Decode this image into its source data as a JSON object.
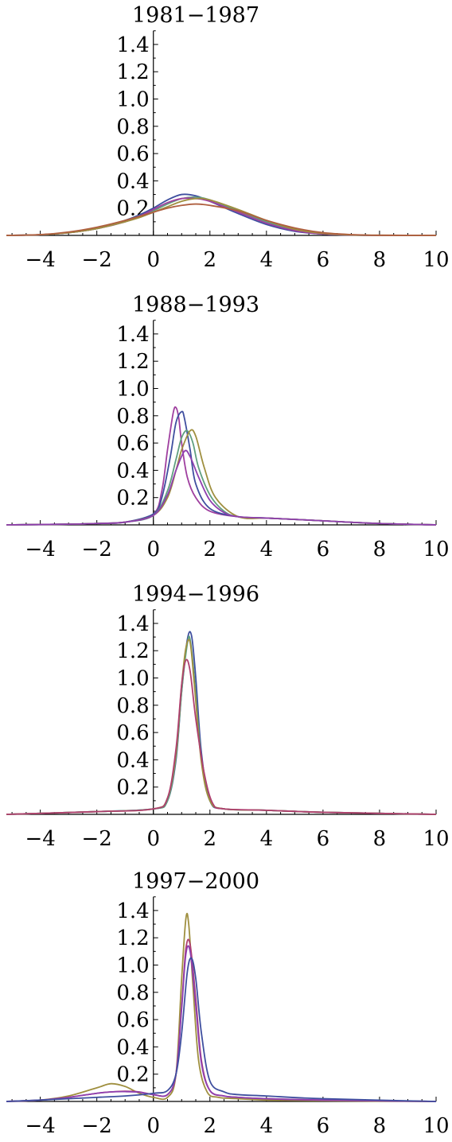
{
  "chart_data": [
    {
      "type": "line",
      "title": "1981−1987",
      "xlim": [
        -5.2,
        10
      ],
      "ylim": [
        0,
        1.5
      ],
      "xticks": [
        -4,
        -2,
        0,
        2,
        4,
        6,
        8,
        10
      ],
      "xtick_labels": [
        "−4",
        "−2",
        "0",
        "2",
        "4",
        "6",
        "8",
        "10"
      ],
      "yticks": [
        0.2,
        0.4,
        0.6,
        0.8,
        1.0,
        1.2,
        1.4
      ],
      "ytick_labels": [
        "0.2",
        "0.4",
        "0.6",
        "0.8",
        "1.0",
        "1.2",
        "1.4"
      ],
      "series": [
        {
          "color": "#3f4f9f",
          "x": [
            -5.2,
            -4,
            -3,
            -2,
            -1,
            -0.5,
            0,
            0.5,
            1,
            1.5,
            2,
            3,
            4,
            5,
            6,
            7,
            8,
            10
          ],
          "y": [
            0.0,
            0.005,
            0.02,
            0.05,
            0.11,
            0.15,
            0.2,
            0.26,
            0.3,
            0.29,
            0.25,
            0.16,
            0.08,
            0.03,
            0.01,
            0.003,
            0.0,
            0.0
          ]
        },
        {
          "color": "#5f9f7f",
          "x": [
            -5.2,
            -4,
            -3,
            -2,
            -1,
            -0.5,
            0,
            0.5,
            1,
            1.5,
            2,
            3,
            4,
            5,
            6,
            7,
            8,
            10
          ],
          "y": [
            0.0,
            0.005,
            0.02,
            0.05,
            0.1,
            0.14,
            0.18,
            0.23,
            0.27,
            0.28,
            0.26,
            0.18,
            0.1,
            0.04,
            0.01,
            0.003,
            0.0,
            0.0
          ]
        },
        {
          "color": "#9f3f9f",
          "x": [
            -5.2,
            -4,
            -3,
            -2,
            -1,
            -0.5,
            0,
            0.5,
            1,
            1.5,
            2,
            3,
            4,
            5,
            6,
            7,
            8,
            10
          ],
          "y": [
            0.0,
            0.005,
            0.02,
            0.05,
            0.1,
            0.14,
            0.19,
            0.24,
            0.27,
            0.27,
            0.25,
            0.17,
            0.09,
            0.035,
            0.01,
            0.003,
            0.0,
            0.0
          ]
        },
        {
          "color": "#9f8f3f",
          "x": [
            -5.2,
            -4,
            -3,
            -2,
            -1,
            -0.5,
            0,
            0.5,
            1,
            1.5,
            2,
            3,
            4,
            5,
            6,
            7,
            8,
            10
          ],
          "y": [
            0.0,
            0.005,
            0.02,
            0.05,
            0.1,
            0.13,
            0.17,
            0.21,
            0.25,
            0.27,
            0.26,
            0.19,
            0.11,
            0.045,
            0.015,
            0.004,
            0.001,
            0.0
          ]
        },
        {
          "color": "#af5f3f",
          "x": [
            -5.2,
            -4,
            -3,
            -2,
            -1,
            0,
            0.5,
            1,
            1.5,
            2,
            3,
            4,
            5,
            6,
            7,
            8,
            10
          ],
          "y": [
            0.0,
            0.006,
            0.025,
            0.06,
            0.11,
            0.17,
            0.2,
            0.22,
            0.23,
            0.22,
            0.18,
            0.11,
            0.055,
            0.02,
            0.006,
            0.001,
            0.0
          ]
        }
      ]
    },
    {
      "type": "line",
      "title": "1988−1993",
      "xlim": [
        -5.2,
        10
      ],
      "ylim": [
        0,
        1.5
      ],
      "xticks": [
        -4,
        -2,
        0,
        2,
        4,
        6,
        8,
        10
      ],
      "xtick_labels": [
        "−4",
        "−2",
        "0",
        "2",
        "4",
        "6",
        "8",
        "10"
      ],
      "yticks": [
        0.2,
        0.4,
        0.6,
        0.8,
        1.0,
        1.2,
        1.4
      ],
      "ytick_labels": [
        "0.2",
        "0.4",
        "0.6",
        "0.8",
        "1.0",
        "1.2",
        "1.4"
      ],
      "series": [
        {
          "color": "#9f3f9f",
          "x": [
            -5.2,
            -3,
            -2,
            -1,
            0,
            0.3,
            0.5,
            0.7,
            0.8,
            0.9,
            1.0,
            1.2,
            1.5,
            2,
            3,
            4,
            5,
            6,
            8,
            10
          ],
          "y": [
            0.0,
            0.005,
            0.01,
            0.02,
            0.08,
            0.25,
            0.55,
            0.82,
            0.86,
            0.78,
            0.6,
            0.35,
            0.2,
            0.1,
            0.06,
            0.05,
            0.04,
            0.03,
            0.01,
            0.0
          ]
        },
        {
          "color": "#3f4f9f",
          "x": [
            -5.2,
            -3,
            -2,
            -1,
            0,
            0.3,
            0.6,
            0.8,
            1.0,
            1.1,
            1.3,
            1.5,
            2,
            3,
            4,
            5,
            6,
            8,
            10
          ],
          "y": [
            0.0,
            0.005,
            0.01,
            0.02,
            0.08,
            0.2,
            0.5,
            0.75,
            0.83,
            0.78,
            0.55,
            0.3,
            0.12,
            0.06,
            0.05,
            0.04,
            0.03,
            0.01,
            0.0
          ]
        },
        {
          "color": "#5f9f7f",
          "x": [
            -5.2,
            -3,
            -2,
            -1,
            0,
            0.5,
            0.8,
            1.0,
            1.2,
            1.4,
            1.6,
            2,
            2.5,
            3,
            4,
            5,
            6,
            8,
            10
          ],
          "y": [
            0.0,
            0.005,
            0.01,
            0.02,
            0.07,
            0.25,
            0.48,
            0.64,
            0.69,
            0.6,
            0.42,
            0.22,
            0.1,
            0.06,
            0.05,
            0.04,
            0.03,
            0.01,
            0.0
          ]
        },
        {
          "color": "#9f8f3f",
          "x": [
            -5.2,
            -3,
            -2,
            -1,
            0,
            0.5,
            0.8,
            1.0,
            1.3,
            1.5,
            1.8,
            2.2,
            3,
            4,
            5,
            6,
            8,
            10
          ],
          "y": [
            0.0,
            0.005,
            0.01,
            0.02,
            0.07,
            0.2,
            0.4,
            0.55,
            0.69,
            0.65,
            0.42,
            0.2,
            0.06,
            0.05,
            0.04,
            0.03,
            0.01,
            0.0
          ]
        },
        {
          "color": "#8f3faf",
          "x": [
            -5.2,
            -3,
            -2,
            -1,
            0,
            0.5,
            0.8,
            1.1,
            1.3,
            1.6,
            2,
            2.5,
            3,
            4,
            5,
            6,
            8,
            10
          ],
          "y": [
            0.0,
            0.005,
            0.01,
            0.02,
            0.07,
            0.22,
            0.4,
            0.54,
            0.5,
            0.35,
            0.18,
            0.09,
            0.06,
            0.05,
            0.04,
            0.03,
            0.01,
            0.0
          ]
        }
      ]
    },
    {
      "type": "line",
      "title": "1994−1996",
      "xlim": [
        -5.2,
        10
      ],
      "ylim": [
        0,
        1.5
      ],
      "xticks": [
        -4,
        -2,
        0,
        2,
        4,
        6,
        8,
        10
      ],
      "xtick_labels": [
        "−4",
        "−2",
        "0",
        "2",
        "4",
        "6",
        "8",
        "10"
      ],
      "yticks": [
        0.2,
        0.4,
        0.6,
        0.8,
        1.0,
        1.2,
        1.4
      ],
      "ytick_labels": [
        "0.2",
        "0.4",
        "0.6",
        "0.8",
        "1.0",
        "1.2",
        "1.4"
      ],
      "series": [
        {
          "color": "#3f4f9f",
          "x": [
            -5.2,
            -2,
            0,
            0.5,
            0.8,
            1.0,
            1.2,
            1.35,
            1.5,
            1.7,
            2,
            2.5,
            4,
            6,
            10
          ],
          "y": [
            0.0,
            0.02,
            0.04,
            0.1,
            0.4,
            0.9,
            1.28,
            1.31,
            1.0,
            0.45,
            0.1,
            0.04,
            0.03,
            0.015,
            0.0
          ]
        },
        {
          "color": "#5f9f7f",
          "x": [
            -5.2,
            -2,
            0,
            0.5,
            0.8,
            1.0,
            1.2,
            1.3,
            1.45,
            1.7,
            2,
            2.5,
            4,
            6,
            10
          ],
          "y": [
            0.0,
            0.02,
            0.04,
            0.1,
            0.42,
            0.9,
            1.25,
            1.28,
            1.0,
            0.4,
            0.1,
            0.04,
            0.03,
            0.015,
            0.0
          ]
        },
        {
          "color": "#9f8f3f",
          "x": [
            -5.2,
            -2,
            0,
            0.5,
            0.8,
            1.0,
            1.15,
            1.3,
            1.45,
            1.7,
            2,
            2.5,
            4,
            6,
            10
          ],
          "y": [
            0.0,
            0.02,
            0.04,
            0.12,
            0.45,
            0.95,
            1.22,
            1.26,
            0.95,
            0.38,
            0.1,
            0.04,
            0.03,
            0.015,
            0.0
          ]
        },
        {
          "color": "#af3f6f",
          "x": [
            -5.2,
            -2,
            0,
            0.5,
            0.8,
            1.0,
            1.15,
            1.3,
            1.5,
            1.8,
            2.1,
            2.5,
            4,
            6,
            10
          ],
          "y": [
            0.0,
            0.02,
            0.04,
            0.12,
            0.48,
            0.95,
            1.13,
            1.05,
            0.7,
            0.3,
            0.08,
            0.04,
            0.03,
            0.015,
            0.0
          ]
        }
      ]
    },
    {
      "type": "line",
      "title": "1997−2000",
      "xlim": [
        -5.2,
        10
      ],
      "ylim": [
        0,
        1.5
      ],
      "xticks": [
        -4,
        -2,
        0,
        2,
        4,
        6,
        8,
        10
      ],
      "xtick_labels": [
        "−4",
        "−2",
        "0",
        "2",
        "4",
        "6",
        "8",
        "10"
      ],
      "yticks": [
        0.2,
        0.4,
        0.6,
        0.8,
        1.0,
        1.2,
        1.4
      ],
      "ytick_labels": [
        "0.2",
        "0.4",
        "0.6",
        "0.8",
        "1.0",
        "1.2",
        "1.4"
      ],
      "series": [
        {
          "color": "#9f8f3f",
          "x": [
            -5.2,
            -4,
            -3,
            -2,
            -1.5,
            -1,
            -0.5,
            0,
            0.5,
            0.8,
            1.0,
            1.15,
            1.25,
            1.4,
            1.6,
            1.9,
            2.3,
            3,
            4,
            6,
            10
          ],
          "y": [
            0.0,
            0.01,
            0.04,
            0.1,
            0.13,
            0.11,
            0.06,
            0.03,
            0.03,
            0.2,
            0.9,
            1.34,
            1.3,
            0.85,
            0.3,
            0.07,
            0.03,
            0.02,
            0.01,
            0.005,
            0.0
          ]
        },
        {
          "color": "#af3f6f",
          "x": [
            -5.2,
            -4,
            -3,
            -2,
            -1.5,
            -1,
            -0.5,
            0,
            0.5,
            0.8,
            1.0,
            1.15,
            1.3,
            1.5,
            1.7,
            2,
            2.5,
            3,
            4,
            6,
            10
          ],
          "y": [
            0.0,
            0.01,
            0.03,
            0.06,
            0.07,
            0.075,
            0.07,
            0.05,
            0.05,
            0.2,
            0.7,
            1.12,
            1.15,
            0.75,
            0.3,
            0.08,
            0.04,
            0.03,
            0.02,
            0.01,
            0.0
          ]
        },
        {
          "color": "#8f3faf",
          "x": [
            -5.2,
            -4,
            -3,
            -2,
            -1.5,
            -1,
            -0.5,
            0,
            0.5,
            0.8,
            1.0,
            1.15,
            1.3,
            1.5,
            1.7,
            2,
            2.5,
            3,
            4,
            6,
            10
          ],
          "y": [
            0.0,
            0.01,
            0.03,
            0.06,
            0.07,
            0.072,
            0.068,
            0.05,
            0.05,
            0.2,
            0.68,
            1.08,
            1.1,
            0.7,
            0.28,
            0.08,
            0.04,
            0.03,
            0.02,
            0.01,
            0.0
          ]
        },
        {
          "color": "#3f4f9f",
          "x": [
            -5.2,
            -4,
            -2,
            -1,
            0,
            0.5,
            0.8,
            1.0,
            1.2,
            1.35,
            1.5,
            1.7,
            2,
            2.5,
            3,
            4,
            6,
            10
          ],
          "y": [
            0.0,
            0.01,
            0.03,
            0.04,
            0.06,
            0.08,
            0.2,
            0.5,
            0.95,
            1.05,
            0.9,
            0.5,
            0.15,
            0.07,
            0.05,
            0.04,
            0.02,
            0.0
          ]
        }
      ]
    }
  ]
}
